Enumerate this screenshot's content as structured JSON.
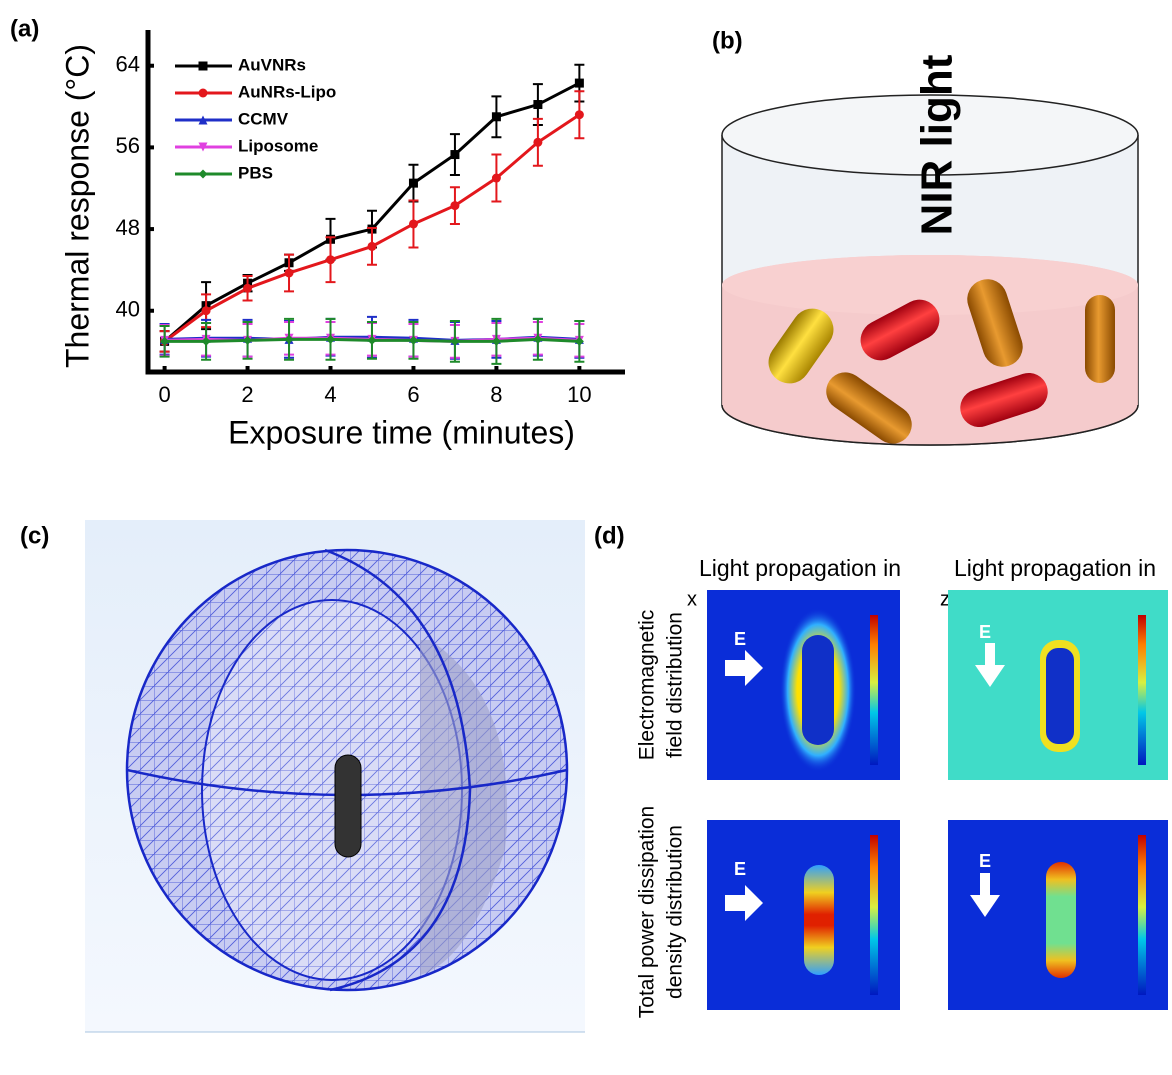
{
  "panel_labels": [
    "(a)",
    "(b)",
    "(c)",
    "(d)"
  ],
  "chart_data": {
    "type": "line",
    "xlabel": "Exposure time (minutes)",
    "ylabel": "Thermal response (°C)",
    "x": [
      0,
      1,
      2,
      3,
      4,
      5,
      6,
      7,
      8,
      9,
      10
    ],
    "xlim": [
      -0.4,
      11.1
    ],
    "xticks": [
      0,
      2,
      4,
      6,
      8,
      10
    ],
    "ylim": [
      34,
      67.5
    ],
    "yticks": [
      40,
      48,
      56,
      64
    ],
    "series": [
      {
        "name": "AuVNRs",
        "color": "#000000",
        "marker": "square",
        "values": [
          37,
          40.5,
          42.7,
          44.7,
          47,
          48,
          52.5,
          55.3,
          59,
          60.2,
          62.3
        ],
        "errors": [
          1,
          2.3,
          0.8,
          0.8,
          2,
          1.8,
          1.8,
          2,
          2,
          2,
          1.8
        ]
      },
      {
        "name": "AuNRs-Lipo",
        "color": "#e3171c",
        "marker": "circle",
        "values": [
          37,
          40,
          42.2,
          43.7,
          45,
          46.3,
          48.5,
          50.3,
          53,
          56.5,
          59.2
        ],
        "errors": [
          1,
          1.6,
          1.2,
          1.8,
          2.2,
          1.8,
          2.3,
          1.8,
          2.3,
          2.3,
          2.3
        ]
      },
      {
        "name": "CCMV",
        "color": "#1f2fc8",
        "marker": "triangle",
        "values": [
          37.2,
          37.3,
          37.3,
          37.2,
          37.4,
          37.4,
          37.3,
          37.1,
          37.2,
          37.4,
          37.2
        ],
        "errors": [
          1.5,
          1.8,
          1.8,
          1.8,
          1.8,
          2,
          1.8,
          1.8,
          1.8,
          1.8,
          1.8
        ]
      },
      {
        "name": "Liposome",
        "color": "#e040e0",
        "marker": "triangle-down",
        "values": [
          37.1,
          37.2,
          37.1,
          37.3,
          37.3,
          37.2,
          37.1,
          37,
          37.2,
          37.3,
          37.1
        ],
        "errors": [
          1.5,
          1.6,
          1.6,
          1.6,
          1.6,
          1.6,
          1.6,
          1.6,
          1.6,
          1.6,
          1.6
        ]
      },
      {
        "name": "PBS",
        "color": "#1e8a2a",
        "marker": "diamond",
        "values": [
          37,
          37,
          37.1,
          37.2,
          37.2,
          37.1,
          37.1,
          37,
          37,
          37.2,
          37
        ],
        "errors": [
          1.5,
          1.8,
          1.8,
          2,
          2,
          1.8,
          1.8,
          2,
          2.2,
          2,
          2
        ]
      }
    ]
  },
  "panel_b": {
    "text": "NIR light"
  },
  "panel_d": {
    "columns": [
      {
        "header": "Light propagation in",
        "axis": "x"
      },
      {
        "header": "Light propagation in",
        "axis": "z"
      }
    ],
    "rows": [
      [
        "Electromagnetic",
        "field distribution"
      ],
      [
        "Total power dissipation",
        "density  distribution"
      ]
    ],
    "arrow_labels": [
      "E",
      "E",
      "E",
      "E"
    ]
  }
}
